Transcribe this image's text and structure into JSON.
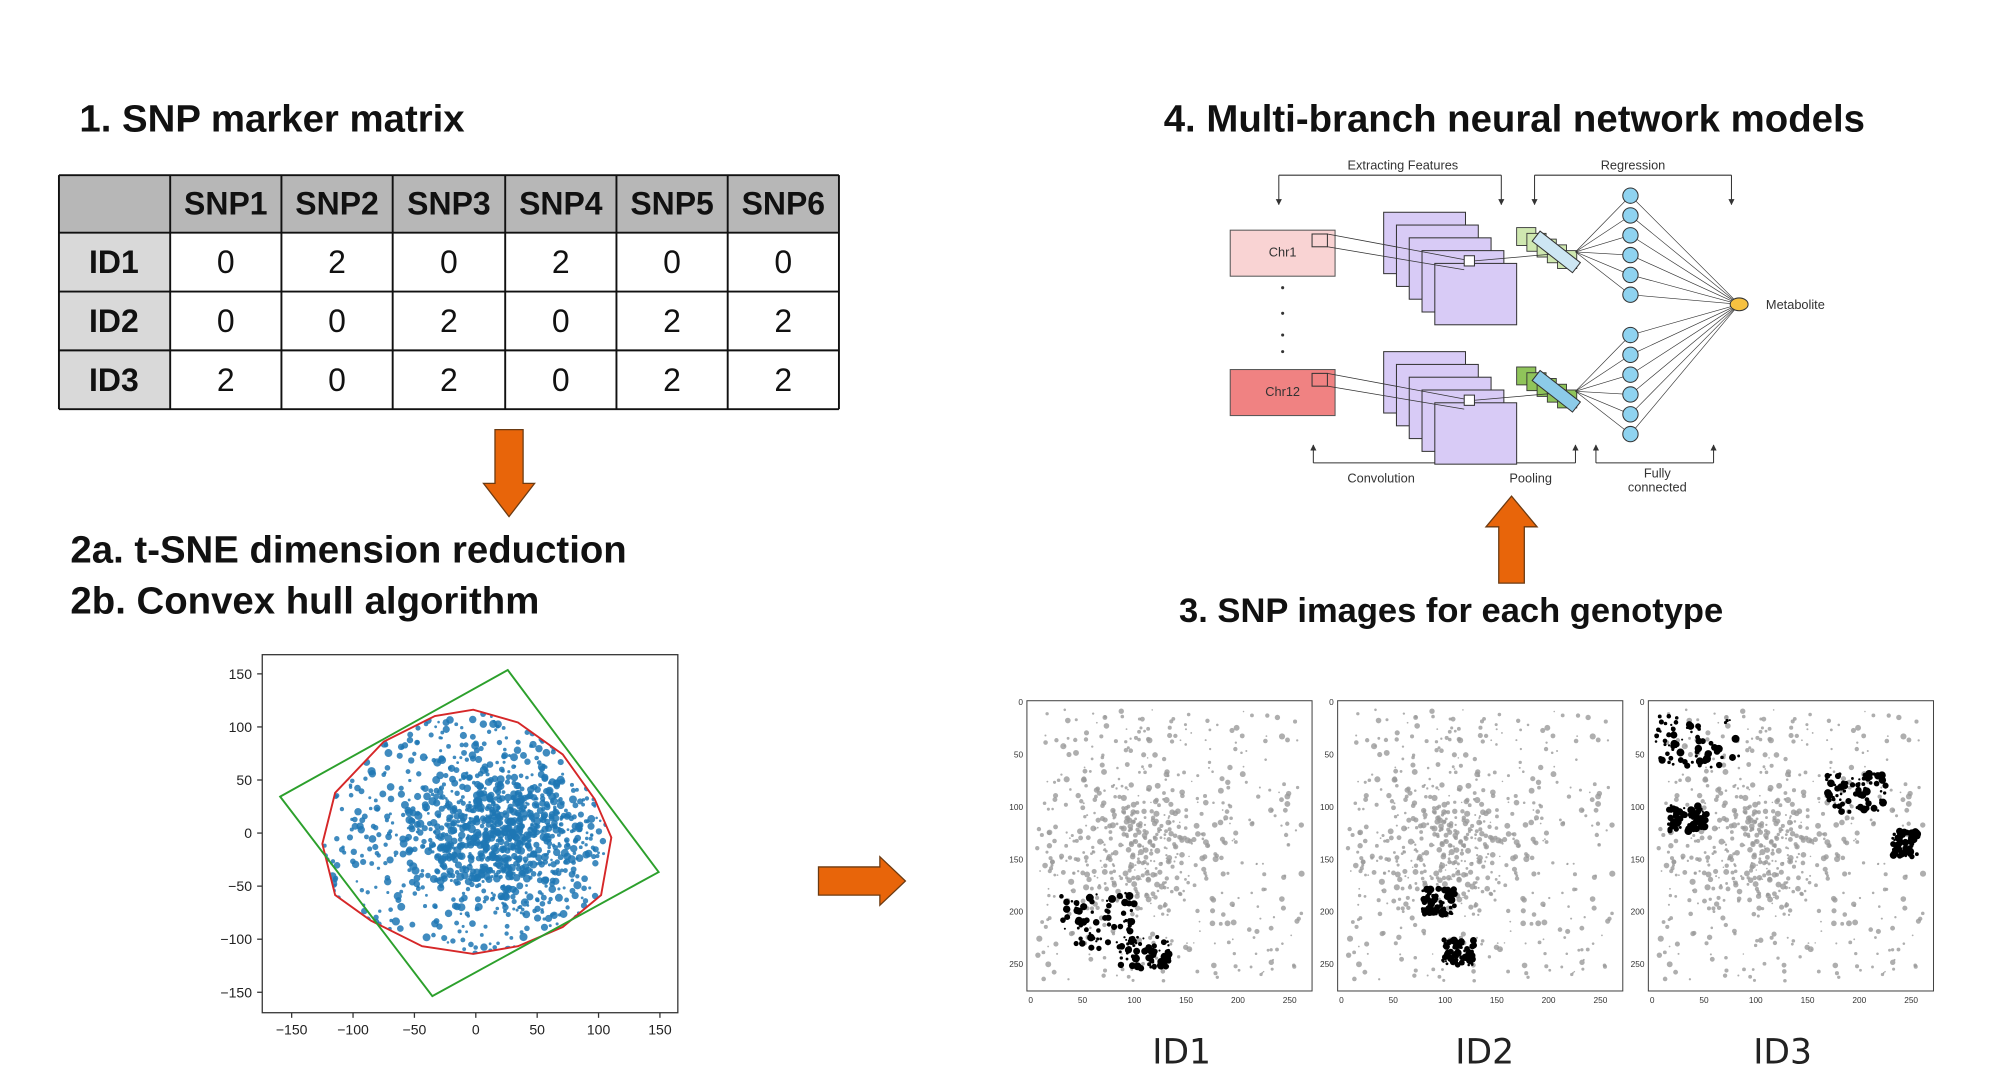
{
  "step1": {
    "title": "1. SNP marker matrix",
    "table": {
      "columns": [
        "SNP1",
        "SNP2",
        "SNP3",
        "SNP4",
        "SNP5",
        "SNP6"
      ],
      "rows": [
        {
          "id": "ID1",
          "values": [
            0,
            2,
            0,
            2,
            0,
            0
          ]
        },
        {
          "id": "ID2",
          "values": [
            0,
            0,
            2,
            0,
            2,
            2
          ]
        },
        {
          "id": "ID3",
          "values": [
            2,
            0,
            2,
            0,
            2,
            2
          ]
        }
      ]
    }
  },
  "step2": {
    "title_a": "2a. t-SNE dimension reduction",
    "title_b": "2b. Convex hull algorithm",
    "plot": {
      "xticks": [
        "−150",
        "−100",
        "−50",
        "0",
        "50",
        "100",
        "150"
      ],
      "yticks": [
        "150",
        "100",
        "50",
        "0",
        "−50",
        "−100",
        "−150"
      ]
    }
  },
  "step3": {
    "title": "3. SNP images for  each genotype",
    "axes": {
      "xticks": [
        "0",
        "50",
        "100",
        "150",
        "200",
        "250"
      ],
      "yticks": [
        "0",
        "50",
        "100",
        "150",
        "200",
        "250"
      ]
    },
    "panels": [
      "ID1",
      "ID2",
      "ID3"
    ]
  },
  "step4": {
    "title": "4. Multi-branch neural network models",
    "diagram": {
      "extracting": "Extracting Features",
      "regression": "Regression",
      "chr1": "Chr1",
      "chr12": "Chr12",
      "output": "Metabolite",
      "convolution": "Convolution",
      "pooling": "Pooling",
      "fully": "Fully",
      "connected": "connected"
    }
  }
}
